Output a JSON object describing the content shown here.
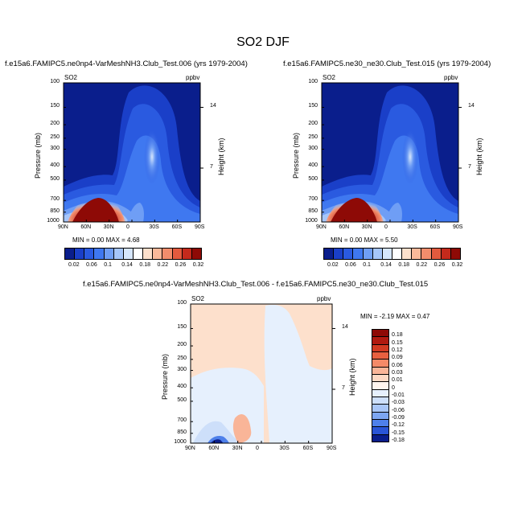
{
  "title": "SO2 DJF",
  "panels": [
    {
      "case": "f.e15a6.FAMIPC5.ne0np4-VarMeshNH3.Club_Test.006 (yrs 1979-2004)",
      "var": "SO2",
      "units": "ppbv",
      "ylabel": "Pressure (mb)",
      "y2label": "Height (km)",
      "minmax": "MIN =  0.00  MAX =  4.68"
    },
    {
      "case": "f.e15a6.FAMIPC5.ne30_ne30.Club_Test.015 (yrs 1979-2004)",
      "var": "SO2",
      "units": "ppbv",
      "ylabel": "Pressure (mb)",
      "y2label": "Height (km)",
      "minmax": "MIN =  0.00  MAX =  5.50"
    }
  ],
  "diff_panel": {
    "title": "f.e15a6.FAMIPC5.ne0np4-VarMeshNH3.Club_Test.006 - f.e15a6.FAMIPC5.ne30_ne30.Club_Test.015",
    "var": "SO2",
    "units": "ppbv",
    "ylabel": "Pressure (mb)",
    "y2label": "Height (km)",
    "minmax": "MIN =  -2.19  MAX =  0.47"
  },
  "chart_data": [
    {
      "type": "heatmap",
      "title": "f.e15a6.FAMIPC5.ne0np4-VarMeshNH3.Club_Test.006 (yrs 1979-2004)",
      "xlabel": "",
      "ylabel": "Pressure (mb)",
      "y2label": "Height (km)",
      "x_ticks": [
        "90N",
        "60N",
        "30N",
        "0",
        "30S",
        "60S",
        "90S"
      ],
      "y_ticks": [
        "100",
        "150",
        "200",
        "250",
        "300",
        "400",
        "500",
        "700",
        "850",
        "1000"
      ],
      "y2_ticks": [
        "14",
        "7"
      ],
      "ylim": [
        1000,
        100
      ],
      "min": 0.0,
      "max": 4.68,
      "colorbar_levels": [
        0.02,
        0.06,
        0.1,
        0.14,
        0.18,
        0.22,
        0.26,
        0.32
      ]
    },
    {
      "type": "heatmap",
      "title": "f.e15a6.FAMIPC5.ne30_ne30.Club_Test.015 (yrs 1979-2004)",
      "xlabel": "",
      "ylabel": "Pressure (mb)",
      "y2label": "Height (km)",
      "x_ticks": [
        "90N",
        "60N",
        "30N",
        "0",
        "30S",
        "60S",
        "90S"
      ],
      "y_ticks": [
        "100",
        "150",
        "200",
        "250",
        "300",
        "400",
        "500",
        "700",
        "850",
        "1000"
      ],
      "y2_ticks": [
        "14",
        "7"
      ],
      "ylim": [
        1000,
        100
      ],
      "min": 0.0,
      "max": 5.5,
      "colorbar_levels": [
        0.02,
        0.06,
        0.1,
        0.14,
        0.18,
        0.22,
        0.26,
        0.32
      ]
    },
    {
      "type": "heatmap",
      "title": "f.e15a6.FAMIPC5.ne0np4-VarMeshNH3.Club_Test.006 - f.e15a6.FAMIPC5.ne30_ne30.Club_Test.015",
      "xlabel": "",
      "ylabel": "Pressure (mb)",
      "y2label": "Height (km)",
      "x_ticks": [
        "90N",
        "60N",
        "30N",
        "0",
        "30S",
        "60S",
        "90S"
      ],
      "y_ticks": [
        "100",
        "150",
        "200",
        "250",
        "300",
        "400",
        "500",
        "700",
        "850",
        "1000"
      ],
      "y2_ticks": [
        "14",
        "7"
      ],
      "ylim": [
        1000,
        100
      ],
      "min": -2.19,
      "max": 0.47,
      "colorbar_levels": [
        "0.18",
        "0.15",
        "0.12",
        "0.09",
        "0.06",
        "0.03",
        "0.01",
        "0",
        "-0.01",
        "-0.03",
        "-0.06",
        "-0.09",
        "-0.12",
        "-0.15",
        "-0.18"
      ]
    }
  ],
  "colors": {
    "seq": [
      "#0a1e8c",
      "#1a3fc8",
      "#2a5ae0",
      "#3f78f0",
      "#6f9ef5",
      "#a6c6fa",
      "#d6e6fc",
      "#ffffff",
      "#fde0cc",
      "#fbb99a",
      "#f28d6c",
      "#e35a3e",
      "#c42a1c",
      "#8e0a06"
    ],
    "div": [
      "#8e0a06",
      "#b01a10",
      "#d23a22",
      "#e86040",
      "#f48a68",
      "#f9b598",
      "#fdd9c4",
      "#fff5ee",
      "#e6f0fd",
      "#cddffa",
      "#a9c6f7",
      "#7da6f2",
      "#4e80ea",
      "#2a55d6",
      "#0a1e8c"
    ]
  }
}
